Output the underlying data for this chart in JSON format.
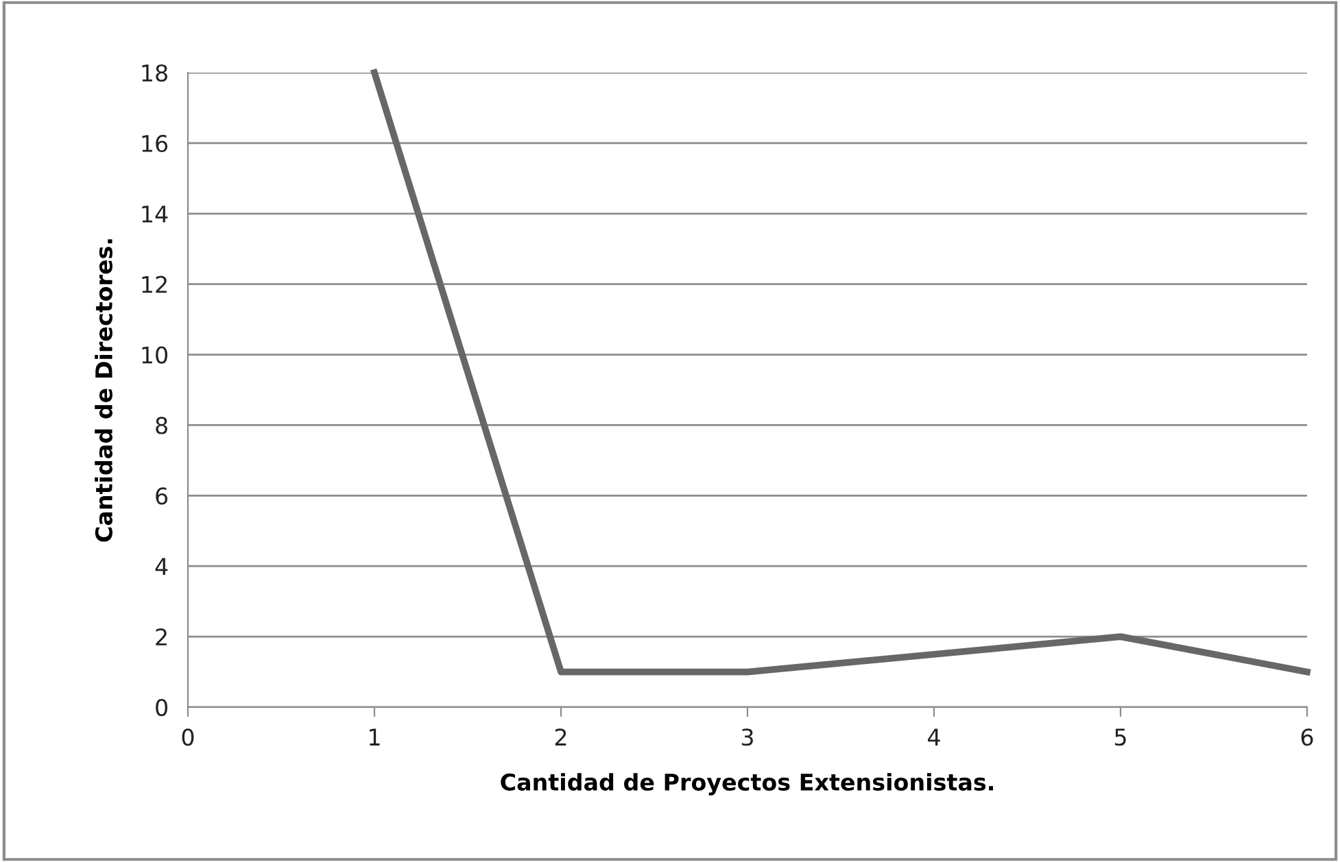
{
  "chart_data": {
    "type": "line",
    "xlabel": "Cantidad de Proyectos Extensionistas.",
    "ylabel": "Cantidad de Directores.",
    "x": [
      1,
      2,
      3,
      5,
      6
    ],
    "series": [
      {
        "color": "#676767",
        "values": [
          18,
          1,
          1,
          2,
          1
        ]
      }
    ],
    "xlim": [
      0,
      6
    ],
    "xticks": [
      0,
      1,
      2,
      3,
      4,
      5,
      6
    ],
    "ylim": [
      0,
      18
    ],
    "yticks": [
      0,
      2,
      4,
      6,
      8,
      10,
      12,
      14,
      16,
      18
    ],
    "grid": "y",
    "marker": "none",
    "line_style": "solid"
  }
}
